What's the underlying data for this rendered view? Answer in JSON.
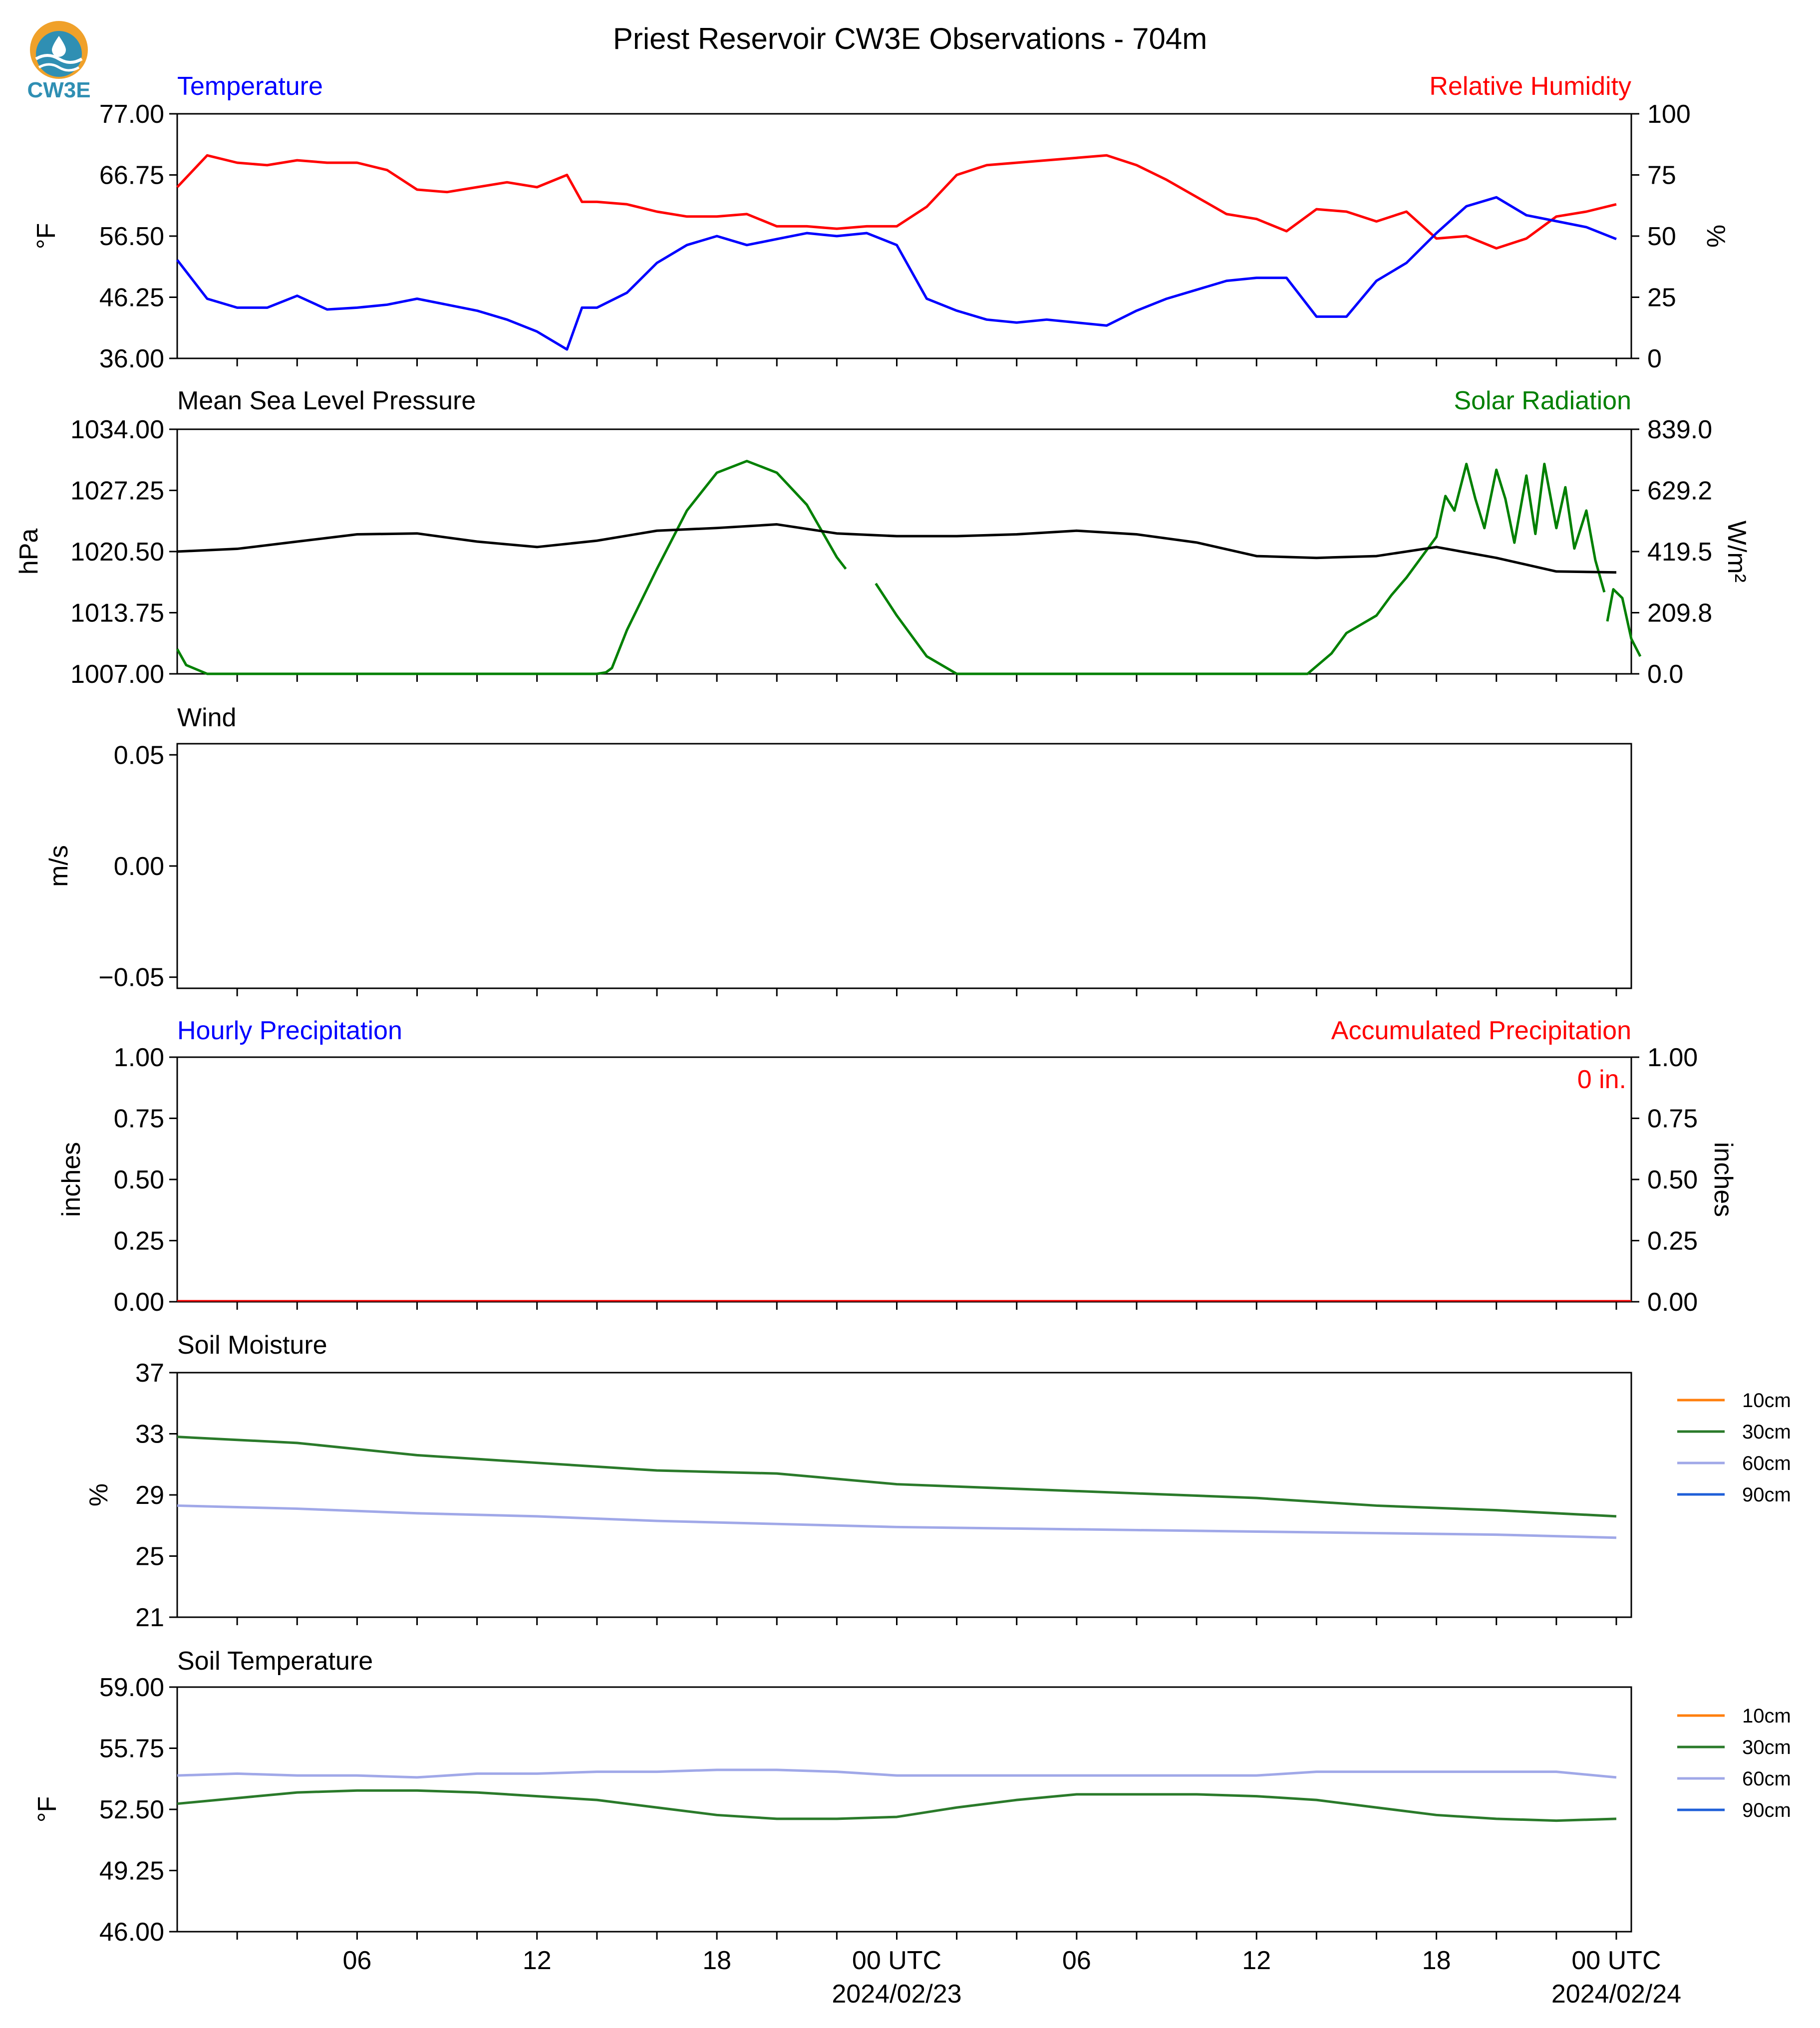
{
  "figure": {
    "title": "Priest Reservoir CW3E Observations - 704m",
    "logo_text": "CW3E"
  },
  "time_axis": {
    "tick_labels": [
      "06",
      "12",
      "18",
      "00 UTC",
      "06",
      "12",
      "18",
      "00 UTC"
    ],
    "date_labels": [
      "2024/02/23",
      "2024/02/24"
    ]
  },
  "colors": {
    "temperature": "#0000ff",
    "humidity": "#ff0000",
    "pressure": "#000000",
    "solar": "#008000",
    "soil_10cm": "#ff7f0e",
    "soil_30cm": "#2a7a2a",
    "soil_60cm": "#a0a8e8",
    "soil_90cm": "#1f5fd8",
    "precip_hourly": "#0000ff",
    "precip_accum": "#ff0000"
  },
  "chart_data": [
    {
      "type": "line",
      "panel": "temperature-humidity",
      "left_title": "Temperature",
      "right_title": "Relative Humidity",
      "ylabel": "°F",
      "ylabel_right": "%",
      "ylim": [
        36,
        77
      ],
      "ylim_right": [
        0,
        100
      ],
      "yticks": [
        "36.00",
        "46.25",
        "56.50",
        "66.75",
        "77.00"
      ],
      "yticks_right": [
        "0",
        "25",
        "50",
        "75",
        "100"
      ],
      "x_hours": [
        0,
        1,
        2,
        3,
        4,
        5,
        6,
        7,
        8,
        9,
        10,
        11,
        12,
        13,
        13.5,
        14,
        15,
        16,
        17,
        18,
        19,
        20,
        21,
        22,
        23,
        24,
        25,
        26,
        27,
        28,
        29,
        30,
        31,
        32,
        33,
        34,
        35,
        36,
        37,
        38,
        39,
        40,
        41,
        42,
        43,
        44,
        45,
        46,
        47,
        48
      ],
      "series": [
        {
          "name": "Temperature",
          "axis": "left",
          "values": [
            52.5,
            46,
            44.5,
            44.5,
            46.5,
            44.2,
            44.5,
            45,
            46,
            45,
            44,
            42.5,
            40.5,
            37.5,
            44.5,
            44.5,
            47,
            52,
            55,
            56.5,
            55,
            56,
            57,
            56.5,
            57,
            55,
            46,
            44,
            42.5,
            42,
            42.5,
            42,
            41.5,
            44,
            46,
            47.5,
            49,
            49.5,
            49.5,
            43,
            43,
            49,
            52,
            57,
            61.5,
            63,
            60,
            59,
            58,
            56
          ]
        },
        {
          "name": "Relative Humidity",
          "axis": "right",
          "values": [
            70,
            83,
            80,
            79,
            81,
            80,
            80,
            77,
            69,
            68,
            70,
            72,
            70,
            75,
            64,
            64,
            63,
            60,
            58,
            58,
            59,
            54,
            54,
            53,
            54,
            54,
            62,
            75,
            79,
            80,
            81,
            82,
            83,
            79,
            73,
            66,
            59,
            57,
            52,
            61,
            60,
            56,
            60,
            49,
            50,
            45,
            49,
            58,
            60,
            63
          ]
        }
      ]
    },
    {
      "type": "line",
      "panel": "pressure-solar",
      "left_title": "Mean Sea Level Pressure",
      "right_title": "Solar Radiation",
      "ylabel": "hPa",
      "ylabel_right": "W/m²",
      "ylim": [
        1007,
        1034
      ],
      "ylim_right": [
        0,
        839
      ],
      "yticks": [
        "1007.00",
        "1013.75",
        "1020.50",
        "1027.25",
        "1034.00"
      ],
      "yticks_right": [
        "0.0",
        "209.8",
        "419.5",
        "629.2",
        "839.0"
      ],
      "pressure": {
        "name": "Mean Sea Level Pressure",
        "x_hours": [
          0,
          2,
          4,
          6,
          8,
          10,
          12,
          14,
          16,
          18,
          20,
          22,
          24,
          26,
          28,
          30,
          32,
          34,
          36,
          38,
          40,
          42,
          44,
          46,
          48
        ],
        "values": [
          1020.5,
          1020.8,
          1021.6,
          1022.4,
          1022.5,
          1021.6,
          1021.0,
          1021.7,
          1022.8,
          1023.1,
          1023.5,
          1022.5,
          1022.2,
          1022.2,
          1022.4,
          1022.8,
          1022.4,
          1021.5,
          1020.0,
          1019.8,
          1020.0,
          1021.0,
          1019.8,
          1018.3,
          1018.2
        ]
      },
      "solar": {
        "name": "Solar Radiation",
        "segments": [
          {
            "x_hours": [
              0,
              0.3,
              1.0,
              2,
              4,
              6,
              8,
              10,
              12,
              13,
              14,
              14.3,
              14.5,
              15.0,
              16,
              17,
              18,
              19,
              20,
              21,
              22,
              22.3
            ],
            "values": [
              85,
              30,
              0,
              0,
              0,
              0,
              0,
              0,
              0,
              0,
              0,
              5,
              20,
              150,
              360,
              560,
              690,
              730,
              690,
              580,
              400,
              360
            ]
          },
          {
            "x_hours": [
              23.3,
              24,
              25,
              26,
              26.5,
              28,
              30,
              32,
              34,
              36,
              37.7,
              38.5,
              39,
              40,
              40.5,
              41,
              41.5,
              42,
              42.3,
              42.6,
              43,
              43.3,
              43.6,
              44,
              44.3,
              44.6,
              45,
              45.3,
              45.6,
              46,
              46.3,
              46.6,
              47,
              47.3,
              47.6
            ],
            "values": [
              310,
              200,
              60,
              0,
              0,
              0,
              0,
              0,
              0,
              0,
              0,
              70,
              140,
              200,
              270,
              330,
              400,
              470,
              610,
              560,
              720,
              600,
              500,
              700,
              600,
              450,
              680,
              480,
              720,
              500,
              640,
              430,
              560,
              390,
              280
            ]
          },
          {
            "x_hours": [
              47.7,
              47.9,
              48.2,
              48.5,
              48.8
            ],
            "values": [
              180,
              290,
              260,
              120,
              60
            ]
          }
        ]
      }
    },
    {
      "type": "line",
      "panel": "wind",
      "left_title": "Wind",
      "ylabel": "m/s",
      "ylim": [
        -0.055,
        0.055
      ],
      "yticks": [
        "−0.05",
        "0.00",
        "0.05"
      ],
      "series": []
    },
    {
      "type": "bar",
      "panel": "precipitation",
      "left_title": "Hourly Precipitation",
      "right_title": "Accumulated Precipitation",
      "ylabel": "inches",
      "ylabel_right": "inches",
      "ylim": [
        0,
        1
      ],
      "ylim_right": [
        0,
        1
      ],
      "yticks": [
        "0.00",
        "0.25",
        "0.50",
        "0.75",
        "1.00"
      ],
      "yticks_right": [
        "0.00",
        "0.25",
        "0.50",
        "0.75",
        "1.00"
      ],
      "accumulated_label": "0 in.",
      "hourly_values": [
        0
      ],
      "accumulated_values": [
        0
      ]
    },
    {
      "type": "line",
      "panel": "soil-moisture",
      "left_title": "Soil Moisture",
      "ylabel": "%",
      "ylim": [
        21,
        37
      ],
      "yticks": [
        "21",
        "25",
        "29",
        "33",
        "37"
      ],
      "legend": [
        "10cm",
        "30cm",
        "60cm",
        "90cm"
      ],
      "x_hours": [
        0,
        4,
        8,
        12,
        16,
        20,
        24,
        28,
        32,
        36,
        40,
        44,
        48
      ],
      "series": [
        {
          "name": "30cm",
          "values": [
            32.8,
            32.4,
            31.6,
            31.1,
            30.6,
            30.4,
            29.7,
            29.4,
            29.1,
            28.8,
            28.3,
            28.0,
            27.6
          ]
        },
        {
          "name": "60cm",
          "values": [
            28.3,
            28.1,
            27.8,
            27.6,
            27.3,
            27.1,
            26.9,
            26.8,
            26.7,
            26.6,
            26.5,
            26.4,
            26.2
          ]
        }
      ]
    },
    {
      "type": "line",
      "panel": "soil-temperature",
      "left_title": "Soil Temperature",
      "ylabel": "°F",
      "ylim": [
        46,
        59
      ],
      "yticks": [
        "46.00",
        "49.25",
        "52.50",
        "55.75",
        "59.00"
      ],
      "legend": [
        "10cm",
        "30cm",
        "60cm",
        "90cm"
      ],
      "x_hours": [
        0,
        2,
        4,
        6,
        8,
        10,
        12,
        14,
        16,
        18,
        20,
        22,
        24,
        26,
        28,
        30,
        32,
        34,
        36,
        38,
        40,
        42,
        44,
        46,
        48
      ],
      "series": [
        {
          "name": "30cm",
          "values": [
            52.8,
            53.1,
            53.4,
            53.5,
            53.5,
            53.4,
            53.2,
            53.0,
            52.6,
            52.2,
            52.0,
            52.0,
            52.1,
            52.6,
            53.0,
            53.3,
            53.3,
            53.3,
            53.2,
            53.0,
            52.6,
            52.2,
            52.0,
            51.9,
            52.0
          ]
        },
        {
          "name": "60cm",
          "values": [
            54.3,
            54.4,
            54.3,
            54.3,
            54.2,
            54.4,
            54.4,
            54.5,
            54.5,
            54.6,
            54.6,
            54.5,
            54.3,
            54.3,
            54.3,
            54.3,
            54.3,
            54.3,
            54.3,
            54.5,
            54.5,
            54.5,
            54.5,
            54.5,
            54.2
          ]
        }
      ]
    }
  ]
}
